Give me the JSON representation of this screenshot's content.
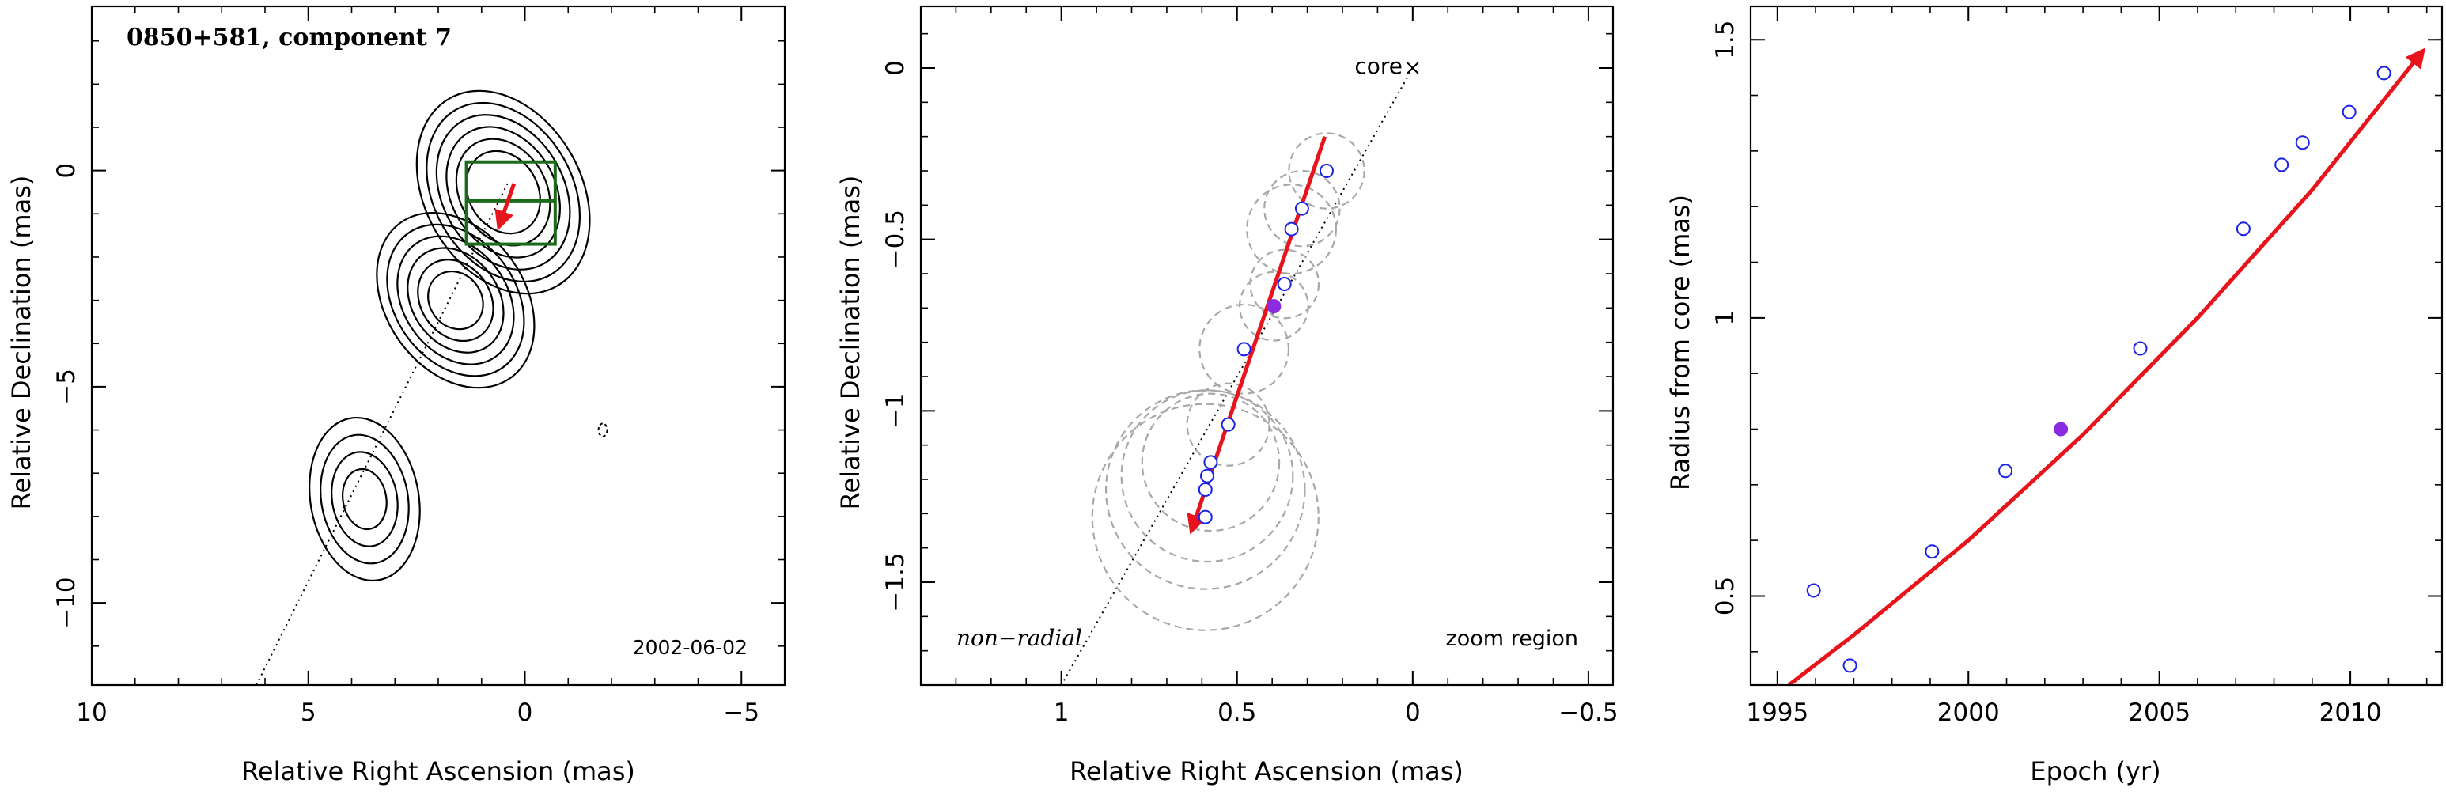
{
  "colors": {
    "arrow": "#e8141b",
    "marker": "#1a22e6",
    "filled_marker": "#8a2be2",
    "zoom_box": "#1a6b1a",
    "circle": "#a8a8a8",
    "axes": "#000000"
  },
  "chart_data": [
    {
      "type": "contour",
      "title": "0850+581, component 7",
      "date_label": "2002-06-02",
      "xlabel": "Relative Right Ascension (mas)",
      "ylabel": "Relative Declination (mas)",
      "xlim": [
        10,
        -6
      ],
      "ylim": [
        -11.9,
        3.8
      ],
      "x_ticks": [
        10,
        5,
        0,
        -5
      ],
      "x_tick_labels": [
        "10",
        "5",
        "0",
        "−5"
      ],
      "y_ticks": [
        0,
        -5,
        -10
      ],
      "y_tick_labels": [
        "0",
        "−5",
        "−10"
      ],
      "jet_axis": [
        [
          0.4,
          -0.3
        ],
        [
          6.2,
          -11.9
        ]
      ],
      "zoom_box": {
        "x": [
          1.35,
          -0.7
        ],
        "y": [
          0.2,
          -1.7
        ]
      },
      "zoom_box_split_y": -0.7,
      "arrow": {
        "from": [
          0.25,
          -0.3
        ],
        "to": [
          0.6,
          -1.3
        ]
      },
      "contour_groups": [
        {
          "center": [
            0.5,
            -0.5
          ],
          "rx": [
            0.8,
            1.0,
            1.2,
            1.4,
            1.6,
            1.8
          ],
          "ry": [
            1.0,
            1.3,
            1.6,
            1.9,
            2.2,
            2.5
          ],
          "rotation_deg": -30
        },
        {
          "center": [
            1.6,
            -3.0
          ],
          "rx": [
            0.6,
            0.8,
            1.0,
            1.2,
            1.4,
            1.6
          ],
          "ry": [
            0.7,
            1.0,
            1.3,
            1.6,
            1.9,
            2.2
          ],
          "rotation_deg": -35
        },
        {
          "center": [
            3.7,
            -7.6
          ],
          "rx": [
            0.5,
            0.75,
            1.0,
            1.25
          ],
          "ry": [
            0.7,
            1.1,
            1.5,
            1.9
          ],
          "rotation_deg": -10
        }
      ],
      "noise_contour": {
        "center": [
          -1.8,
          -6.0
        ],
        "rx": 0.1,
        "ry": 0.15
      }
    },
    {
      "type": "scatter",
      "label_left": "non−radial",
      "label_right": "zoom region",
      "core_label": "core",
      "xlabel": "Relative Right Ascension (mas)",
      "ylabel": "Relative Declination (mas)",
      "xlim": [
        1.4,
        -0.57
      ],
      "ylim": [
        -1.8,
        0.18
      ],
      "x_ticks": [
        1,
        0.5,
        0,
        -0.5
      ],
      "x_tick_labels": [
        "1",
        "0.5",
        "0",
        "−0.5"
      ],
      "y_ticks": [
        0,
        -0.5,
        -1,
        -1.5
      ],
      "y_tick_labels": [
        "0",
        "−0.5",
        "−1",
        "−1.5"
      ],
      "core": [
        0,
        0
      ],
      "jet_axis": [
        [
          0,
          0
        ],
        [
          1.0,
          -1.8
        ]
      ],
      "arrow": {
        "from": [
          0.25,
          -0.2
        ],
        "to": [
          0.63,
          -1.35
        ]
      },
      "points": [
        {
          "x": 0.245,
          "y": -0.3,
          "r": 0.11,
          "filled": false
        },
        {
          "x": 0.315,
          "y": -0.41,
          "r": 0.11,
          "filled": false
        },
        {
          "x": 0.345,
          "y": -0.47,
          "r": 0.13,
          "filled": false
        },
        {
          "x": 0.365,
          "y": -0.63,
          "r": 0.1,
          "filled": false
        },
        {
          "x": 0.395,
          "y": -0.695,
          "r": 0.1,
          "filled": true
        },
        {
          "x": 0.48,
          "y": -0.82,
          "r": 0.13,
          "filled": false
        },
        {
          "x": 0.525,
          "y": -1.04,
          "r": 0.12,
          "filled": false
        },
        {
          "x": 0.575,
          "y": -1.15,
          "r": 0.2,
          "filled": false
        },
        {
          "x": 0.585,
          "y": -1.19,
          "r": 0.25,
          "filled": false
        },
        {
          "x": 0.59,
          "y": -1.23,
          "r": 0.29,
          "filled": false
        },
        {
          "x": 0.59,
          "y": -1.31,
          "r": 0.33,
          "filled": false
        }
      ]
    },
    {
      "type": "scatter",
      "xlabel": "Epoch (yr)",
      "ylabel": "Radius from core (mas)",
      "xlim": [
        1994.3,
        2012.4
      ],
      "ylim": [
        0.34,
        1.56
      ],
      "x_ticks": [
        1995,
        2000,
        2005,
        2010
      ],
      "x_tick_labels": [
        "1995",
        "2000",
        "2005",
        "2010"
      ],
      "y_ticks": [
        0.5,
        1,
        1.5
      ],
      "y_tick_labels": [
        "0.5",
        "1",
        "1.5"
      ],
      "fit": [
        [
          1995.3,
          0.34
        ],
        [
          1997.0,
          0.43
        ],
        [
          2000.0,
          0.6
        ],
        [
          2003.0,
          0.79
        ],
        [
          2006.0,
          1.0
        ],
        [
          2009.0,
          1.23
        ],
        [
          2011.9,
          1.48
        ]
      ],
      "points": [
        {
          "x": 1995.95,
          "y": 0.51,
          "filled": false
        },
        {
          "x": 1996.9,
          "y": 0.375,
          "filled": false
        },
        {
          "x": 1999.05,
          "y": 0.58,
          "filled": false
        },
        {
          "x": 2000.97,
          "y": 0.725,
          "filled": false
        },
        {
          "x": 2002.42,
          "y": 0.8,
          "filled": true
        },
        {
          "x": 2004.5,
          "y": 0.945,
          "filled": false
        },
        {
          "x": 2007.2,
          "y": 1.16,
          "filled": false
        },
        {
          "x": 2008.2,
          "y": 1.275,
          "filled": false
        },
        {
          "x": 2008.75,
          "y": 1.315,
          "filled": false
        },
        {
          "x": 2009.97,
          "y": 1.37,
          "filled": false
        },
        {
          "x": 2010.88,
          "y": 1.44,
          "filled": false
        }
      ]
    }
  ]
}
